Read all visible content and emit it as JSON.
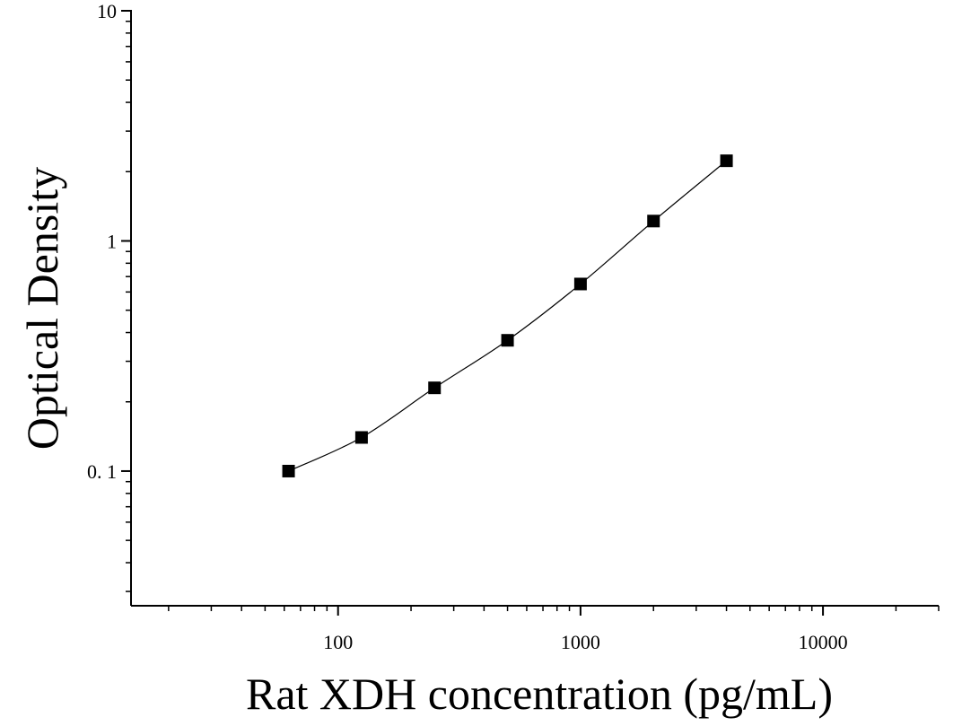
{
  "chart_data": {
    "type": "scatter",
    "title": "",
    "xlabel": "Rat XDH concentration (pg/mL)",
    "ylabel": "Optical Density",
    "x_scale": "log",
    "y_scale": "log",
    "xlim": [
      14,
      30000
    ],
    "ylim": [
      0.026,
      10
    ],
    "x_ticks": [
      {
        "value": 100,
        "label": "100"
      },
      {
        "value": 1000,
        "label": "1000"
      },
      {
        "value": 10000,
        "label": "10000"
      }
    ],
    "y_ticks": [
      {
        "value": 0.1,
        "label": "0. 1"
      },
      {
        "value": 1,
        "label": "1"
      },
      {
        "value": 10,
        "label": "10"
      }
    ],
    "grid": false,
    "legend": "none",
    "marker_color": "#000000",
    "line_color": "#000000",
    "marker": "square",
    "series": [
      {
        "x": [
          62.5,
          125,
          250,
          500,
          1000,
          2000,
          4000
        ],
        "y": [
          0.1,
          0.14,
          0.23,
          0.37,
          0.65,
          1.22,
          2.23
        ]
      }
    ]
  }
}
